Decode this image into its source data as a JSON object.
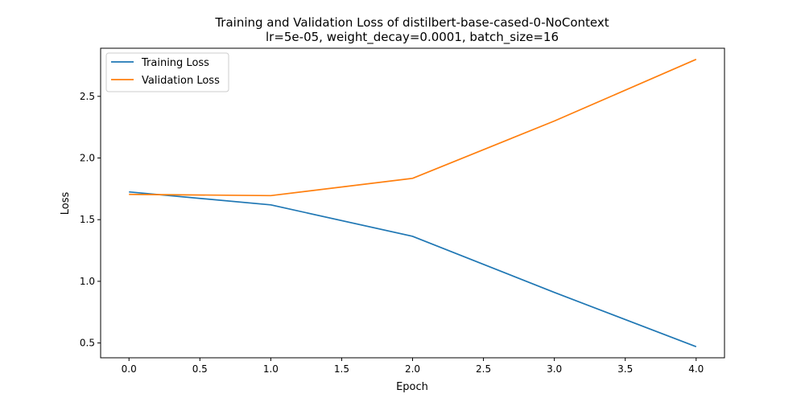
{
  "chart_data": {
    "type": "line",
    "title": "Training and Validation Loss of distilbert-base-cased-0-NoContext",
    "subtitle": "lr=5e-05, weight_decay=0.0001, batch_size=16",
    "xlabel": "Epoch",
    "ylabel": "Loss",
    "xlim": [
      -0.2,
      4.2
    ],
    "ylim": [
      0.38,
      2.89
    ],
    "xticks": [
      "0.0",
      "0.5",
      "1.0",
      "1.5",
      "2.0",
      "2.5",
      "3.0",
      "3.5",
      "4.0"
    ],
    "yticks": [
      "0.5",
      "1.0",
      "1.5",
      "2.0",
      "2.5"
    ],
    "grid": false,
    "legend_position": "top-left",
    "x": [
      0,
      1,
      2,
      3,
      4
    ],
    "series": [
      {
        "name": "Training Loss",
        "color": "#1f77b4",
        "values": [
          1.725,
          1.62,
          1.365,
          0.91,
          0.47
        ]
      },
      {
        "name": "Validation Loss",
        "color": "#ff7f0e",
        "values": [
          1.705,
          1.695,
          1.835,
          2.3,
          2.8
        ]
      }
    ]
  }
}
